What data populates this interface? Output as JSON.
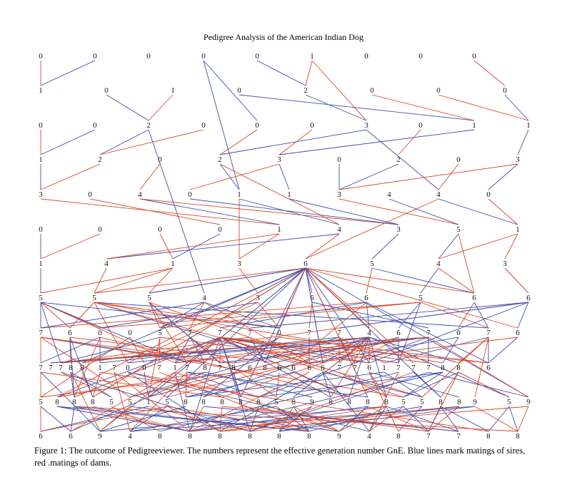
{
  "title": "Pedigree Analysis of the American Indian Dog",
  "caption": "Figure 1: The outcome of Pedigreeviewer. The numbers represent the effective generation number GnE. Blue lines mark matings of sires, red .matings of dams.",
  "colors": {
    "sire": "#3f4fa8",
    "dam": "#d9482b"
  },
  "rows": [
    [
      "0",
      "0",
      "0",
      "0",
      "0",
      "1",
      "0",
      "0",
      "0"
    ],
    [
      "1",
      "0",
      "1",
      "0",
      "2",
      "0",
      "0",
      "0"
    ],
    [
      "0",
      "0",
      "2",
      "0",
      "0",
      "0",
      "3",
      "0",
      "1",
      "1"
    ],
    [
      "1",
      "2",
      "0",
      "2",
      "3",
      "0",
      "2",
      "0",
      "3"
    ],
    [
      "3",
      "0",
      "4",
      "0",
      "1",
      "1",
      "3",
      "4",
      "4",
      "0"
    ],
    [
      "0",
      "0",
      "0",
      "0",
      "1",
      "4",
      "3",
      "5",
      "1"
    ],
    [
      "1",
      "4",
      "1",
      "3",
      "6",
      "5",
      "4",
      "3"
    ],
    [
      "5",
      "5",
      "5",
      "4",
      "3",
      "6",
      "6",
      "5",
      "6",
      "6"
    ],
    [
      "7",
      "6",
      "0",
      "0",
      "5",
      "7",
      "7",
      "7",
      "0",
      "7",
      "7",
      "4",
      "6",
      "7",
      "0",
      "7",
      "6"
    ],
    [
      "7",
      "7",
      "7",
      "8",
      "8",
      "1",
      "7",
      "0",
      "0",
      "7",
      "1",
      "7",
      "8",
      "7",
      "8",
      "6",
      "8",
      "6",
      "6",
      "6",
      "6",
      "7",
      "7",
      "6",
      "1",
      "7",
      "7",
      "7",
      "8",
      "8",
      "6"
    ],
    [
      "5",
      "8",
      "8",
      "8",
      "5",
      "5",
      "1",
      "5",
      "8",
      "8",
      "8",
      "8",
      "8",
      "5",
      "8",
      "9",
      "8",
      "8",
      "8",
      "8",
      "5",
      "5",
      "8",
      "8",
      "9",
      "5",
      "9"
    ],
    [
      "6",
      "6",
      "9",
      "4",
      "8",
      "8",
      "8",
      "8",
      "8",
      "8",
      "9",
      "4",
      "8",
      "7",
      "7",
      "8",
      "8"
    ]
  ]
}
